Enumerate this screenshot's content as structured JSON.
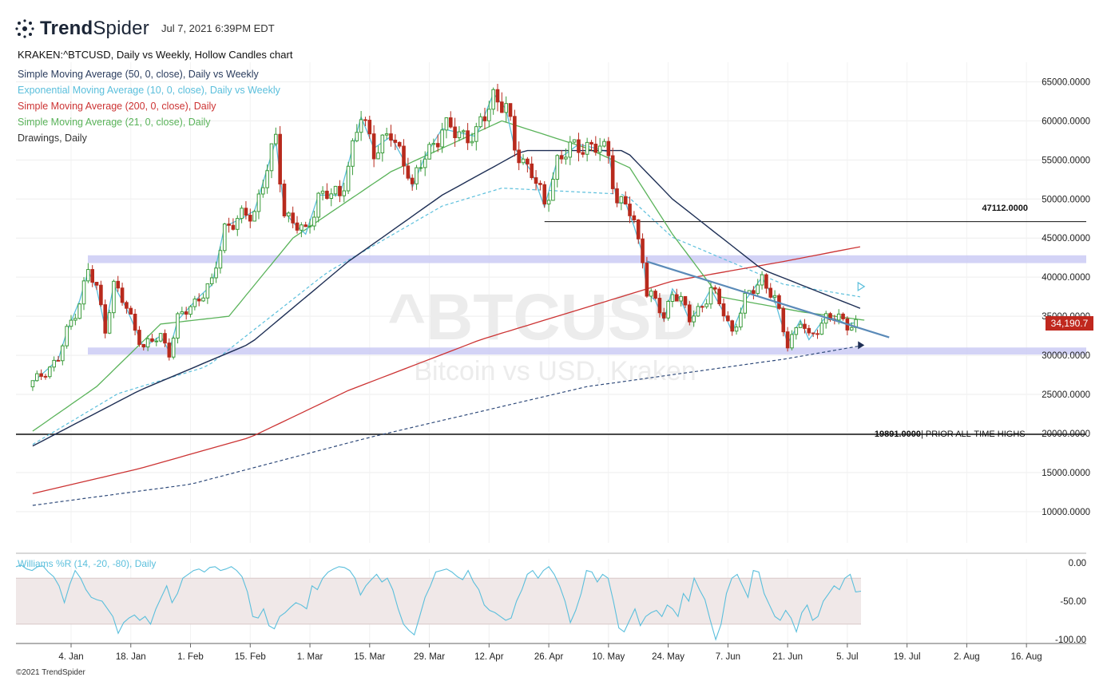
{
  "header": {
    "brand_bold": "Trend",
    "brand_regular": "Spider",
    "timestamp": "Jul 7, 2021 6:39PM EDT",
    "chart_title": "KRAKEN:^BTCUSD, Daily vs Weekly, Hollow Candles chart",
    "copyright": "©2021 TrendSpider"
  },
  "legend": [
    {
      "label": "Simple Moving Average (50, 0, close), Daily vs Weekly",
      "color": "#2b3d5e"
    },
    {
      "label": "Exponential Moving Average (10, 0, close), Daily vs Weekly",
      "color": "#5bbfdc"
    },
    {
      "label": "Simple Moving Average (200, 0, close), Daily",
      "color": "#cc3333"
    },
    {
      "label": "Simple Moving Average (21, 0, close), Daily",
      "color": "#5ab35a"
    },
    {
      "label": "Drawings, Daily",
      "color": "#333333"
    }
  ],
  "watermark": {
    "symbol": "^BTCUSD",
    "name": "Bitcoin vs USD, Kraken"
  },
  "colors": {
    "up": "#3a9b3a",
    "down": "#b82a1d",
    "sma50": "#1e2f55",
    "ema10": "#5bbfdc",
    "sma200": "#cc3333",
    "sma21": "#5ab35a",
    "weekly_sma_dash": "#2f4a7a",
    "ema_dash": "#5bbfdc",
    "zone": "#c8c8f4",
    "trendline": "#5a8ab8",
    "williams": "#5bbfdc",
    "williams_band": "#f0e8e8"
  },
  "price_badge": "34,190.7",
  "annotations": {
    "level_47112": "47112.0000",
    "level_19891": "19891.0000",
    "level_19891_note": "| PRIOR ALL-TIME HIGHS"
  },
  "chart_data": [
    {
      "type": "candlestick",
      "title": "KRAKEN:^BTCUSD, Daily vs Weekly, Hollow Candles chart",
      "y_ticks": [
        "65000.0000",
        "60000.0000",
        "55000.0000",
        "50000.0000",
        "45000.0000",
        "40000.0000",
        "35000.0000",
        "30000.0000",
        "25000.0000",
        "20000.0000",
        "15000.0000",
        "10000.0000"
      ],
      "x_ticks": [
        "4. Jan",
        "18. Jan",
        "1. Feb",
        "15. Feb",
        "1. Mar",
        "15. Mar",
        "29. Mar",
        "12. Apr",
        "26. Apr",
        "10. May",
        "24. May",
        "7. Jun",
        "21. Jun",
        "5. Jul",
        "19. Jul",
        "2. Aug",
        "16. Aug"
      ],
      "ylim": [
        6000,
        67500
      ],
      "last_price": 34190.7,
      "horizontal_levels": [
        47112.0,
        19891.0
      ],
      "support_zones": [
        [
          41800,
          42800
        ],
        [
          30100,
          31000
        ]
      ],
      "trendline": {
        "start": [
          "2021-05-19",
          42000
        ],
        "end": [
          "2021-07-12",
          32300
        ]
      },
      "close_anchors": [
        [
          "2020-12-26",
          26500
        ],
        [
          "2021-01-01",
          29500
        ],
        [
          "2021-01-03",
          33000
        ],
        [
          "2021-01-06",
          37000
        ],
        [
          "2021-01-08",
          40800
        ],
        [
          "2021-01-10",
          38500
        ],
        [
          "2021-01-12",
          33500
        ],
        [
          "2021-01-14",
          39000
        ],
        [
          "2021-01-17",
          36000
        ],
        [
          "2021-01-21",
          31000
        ],
        [
          "2021-01-25",
          32500
        ],
        [
          "2021-01-27",
          30500
        ],
        [
          "2021-01-29",
          34500
        ],
        [
          "2021-02-03",
          37500
        ],
        [
          "2021-02-06",
          39000
        ],
        [
          "2021-02-09",
          46500
        ],
        [
          "2021-02-13",
          47500
        ],
        [
          "2021-02-16",
          48500
        ],
        [
          "2021-02-21",
          57500
        ],
        [
          "2021-02-23",
          48500
        ],
        [
          "2021-02-25",
          47000
        ],
        [
          "2021-02-28",
          45500
        ],
        [
          "2021-03-03",
          50500
        ],
        [
          "2021-03-08",
          50500
        ],
        [
          "2021-03-13",
          60500
        ],
        [
          "2021-03-16",
          56500
        ],
        [
          "2021-03-20",
          58000
        ],
        [
          "2021-03-24",
          54000
        ],
        [
          "2021-03-25",
          51500
        ],
        [
          "2021-03-28",
          55500
        ],
        [
          "2021-04-01",
          59000
        ],
        [
          "2021-04-05",
          58500
        ],
        [
          "2021-04-09",
          58000
        ],
        [
          "2021-04-13",
          63500
        ],
        [
          "2021-04-16",
          61500
        ],
        [
          "2021-04-18",
          56500
        ],
        [
          "2021-04-22",
          53500
        ],
        [
          "2021-04-25",
          49000
        ],
        [
          "2021-04-28",
          55000
        ],
        [
          "2021-05-03",
          57000
        ],
        [
          "2021-05-07",
          56500
        ],
        [
          "2021-05-10",
          56000
        ],
        [
          "2021-05-12",
          49500
        ],
        [
          "2021-05-14",
          49500
        ],
        [
          "2021-05-16",
          46500
        ],
        [
          "2021-05-18",
          43000
        ],
        [
          "2021-05-19",
          38000
        ],
        [
          "2021-05-21",
          37000
        ],
        [
          "2021-05-23",
          34500
        ],
        [
          "2021-05-25",
          38500
        ],
        [
          "2021-05-27",
          37000
        ],
        [
          "2021-05-29",
          34500
        ],
        [
          "2021-06-01",
          36500
        ],
        [
          "2021-06-03",
          38500
        ],
        [
          "2021-06-06",
          35500
        ],
        [
          "2021-06-08",
          33000
        ],
        [
          "2021-06-11",
          37000
        ],
        [
          "2021-06-15",
          40000
        ],
        [
          "2021-06-18",
          37000
        ],
        [
          "2021-06-21",
          31500
        ],
        [
          "2021-06-22",
          32500
        ],
        [
          "2021-06-24",
          34500
        ],
        [
          "2021-06-26",
          32000
        ],
        [
          "2021-06-30",
          35000
        ],
        [
          "2021-07-03",
          34500
        ],
        [
          "2021-07-05",
          34000
        ],
        [
          "2021-07-07",
          34190
        ]
      ],
      "series": [
        {
          "name": "Simple Moving Average (50, 0, close), Daily vs Weekly",
          "anchors": [
            [
              "2020-12-26",
              18400
            ],
            [
              "2021-01-20",
              25500
            ],
            [
              "2021-02-15",
              31500
            ],
            [
              "2021-03-10",
              42000
            ],
            [
              "2021-04-01",
              50500
            ],
            [
              "2021-04-20",
              56200
            ],
            [
              "2021-05-14",
              56200
            ],
            [
              "2021-05-25",
              50000
            ],
            [
              "2021-06-15",
              41000
            ],
            [
              "2021-07-09",
              35800
            ]
          ]
        },
        {
          "name": "Exponential Moving Average (10, 0, close), Daily vs Weekly",
          "anchors": [
            [
              "2020-12-26",
              20000
            ],
            [
              "2021-01-15",
              26500
            ],
            [
              "2021-02-05",
              30000
            ],
            [
              "2021-03-05",
              42000
            ],
            [
              "2021-04-01",
              50500
            ],
            [
              "2021-04-15",
              52800
            ],
            [
              "2021-05-14",
              52000
            ],
            [
              "2021-05-25",
              46500
            ],
            [
              "2021-06-20",
              40500
            ],
            [
              "2021-07-09",
              38800
            ]
          ]
        },
        {
          "name": "Simple Moving Average (200, 0, close), Daily",
          "anchors": [
            [
              "2020-12-26",
              12300
            ],
            [
              "2021-01-20",
              15500
            ],
            [
              "2021-02-15",
              19500
            ],
            [
              "2021-03-10",
              25500
            ],
            [
              "2021-04-10",
              32000
            ],
            [
              "2021-05-10",
              37000
            ],
            [
              "2021-05-25",
              39500
            ],
            [
              "2021-06-20",
              42000
            ],
            [
              "2021-07-09",
              44000
            ]
          ]
        },
        {
          "name": "Simple Moving Average (21, 0, close), Daily",
          "anchors": [
            [
              "2020-12-26",
              20300
            ],
            [
              "2021-01-10",
              26000
            ],
            [
              "2021-01-25",
              34000
            ],
            [
              "2021-02-10",
              35000
            ],
            [
              "2021-02-25",
              45000
            ],
            [
              "2021-03-20",
              53500
            ],
            [
              "2021-04-15",
              60000
            ],
            [
              "2021-05-05",
              56500
            ],
            [
              "2021-05-15",
              54000
            ],
            [
              "2021-05-25",
              45500
            ],
            [
              "2021-06-05",
              37500
            ],
            [
              "2021-06-25",
              35500
            ],
            [
              "2021-07-09",
              34500
            ]
          ]
        }
      ],
      "weekly_trendline": {
        "anchors": [
          [
            "2020-12-26",
            10800
          ],
          [
            "2021-02-01",
            13500
          ],
          [
            "2021-03-15",
            19500
          ],
          [
            "2021-05-05",
            26000
          ],
          [
            "2021-06-20",
            29500
          ],
          [
            "2021-07-09",
            31300
          ]
        ]
      },
      "ema_projection_marker": [
        "2021-07-09",
        38800
      ],
      "sma_projection_marker": [
        "2021-07-09",
        31300
      ]
    },
    {
      "type": "line",
      "title": "Williams %R (14, -20, -80), Daily",
      "y_ticks": [
        "0.00",
        "-50.00",
        "-100.00"
      ],
      "ylim": [
        -100,
        0
      ],
      "bands": [
        -20,
        -80
      ],
      "values": [
        -5,
        -3,
        -8,
        -10,
        -5,
        -4,
        -12,
        -18,
        -30,
        -52,
        -28,
        -10,
        -20,
        -35,
        -45,
        -48,
        -50,
        -60,
        -70,
        -92,
        -78,
        -72,
        -68,
        -75,
        -70,
        -80,
        -60,
        -45,
        -30,
        -52,
        -40,
        -20,
        -15,
        -10,
        -8,
        -12,
        -6,
        -5,
        -10,
        -8,
        -5,
        -10,
        -18,
        -38,
        -70,
        -72,
        -60,
        -82,
        -86,
        -70,
        -65,
        -58,
        -52,
        -55,
        -60,
        -30,
        -35,
        -20,
        -12,
        -8,
        -5,
        -6,
        -10,
        -20,
        -42,
        -30,
        -22,
        -15,
        -25,
        -20,
        -35,
        -60,
        -80,
        -88,
        -94,
        -70,
        -45,
        -30,
        -12,
        -10,
        -8,
        -12,
        -18,
        -22,
        -10,
        -25,
        -35,
        -55,
        -62,
        -65,
        -70,
        -75,
        -72,
        -50,
        -35,
        -15,
        -10,
        -20,
        -10,
        -5,
        -15,
        -30,
        -50,
        -78,
        -62,
        -40,
        -10,
        -12,
        -25,
        -15,
        -20,
        -50,
        -85,
        -90,
        -75,
        -60,
        -82,
        -70,
        -65,
        -62,
        -70,
        -55,
        -60,
        -70,
        -40,
        -50,
        -20,
        -35,
        -48,
        -75,
        -100,
        -80,
        -40,
        -20,
        -15,
        -30,
        -45,
        -10,
        -12,
        -40,
        -55,
        -70,
        -75,
        -62,
        -72,
        -90,
        -65,
        -55,
        -75,
        -70,
        -50,
        -40,
        -30,
        -35,
        -20,
        -15,
        -38,
        -37
      ]
    }
  ]
}
